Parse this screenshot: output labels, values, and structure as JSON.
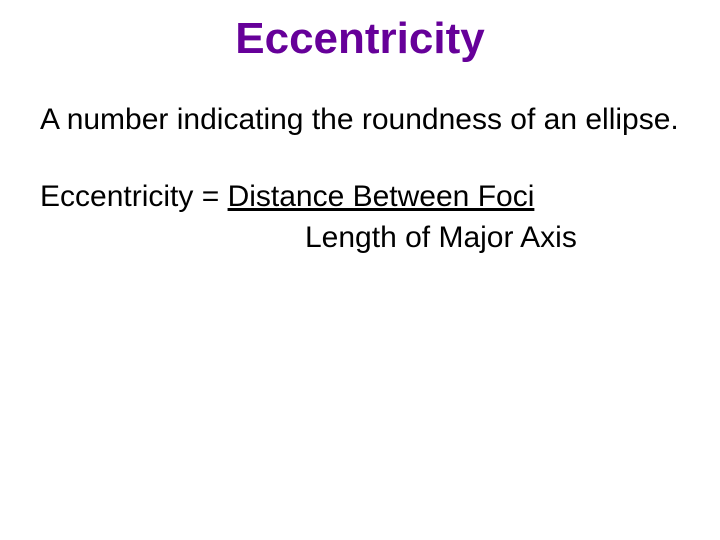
{
  "slide": {
    "title": "Eccentricity",
    "definition": "A number indicating the roundness of an ellipse.",
    "formula": {
      "lhs": "Eccentricity = ",
      "numerator": "Distance Between Foci",
      "denominator": "Length of Major Axis"
    },
    "colors": {
      "title": "#660099",
      "body_text": "#000000",
      "background": "#ffffff"
    },
    "fonts": {
      "title_size_pt": 33,
      "body_size_pt": 23,
      "family": "Comic Sans MS"
    }
  }
}
